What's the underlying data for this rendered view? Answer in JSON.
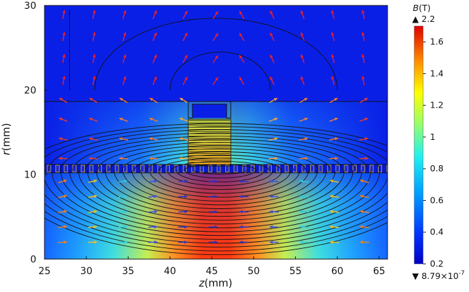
{
  "chart_data": {
    "type": "heatmap",
    "title": "",
    "xlabel": {
      "var": "z",
      "unit": "(mm)"
    },
    "ylabel": {
      "var": "r",
      "unit": "(mm)"
    },
    "xlim": [
      25,
      66
    ],
    "ylim": [
      0,
      30
    ],
    "xticks": [
      25,
      30,
      35,
      40,
      45,
      50,
      55,
      60,
      65
    ],
    "yticks": [
      0,
      10,
      20,
      30
    ],
    "regions": {
      "air_gap_r": [
        10,
        11
      ],
      "magnet": {
        "z": [
          43,
          48
        ],
        "r": [
          10.8,
          16.4
        ]
      },
      "upper_block_r": [
        11,
        20
      ],
      "inner_shell": {
        "z": [
          42.5,
          48.5
        ],
        "r": [
          16.5,
          20
        ]
      }
    },
    "field_summary": {
      "peak_B_core": 1.65,
      "peak_z": 46,
      "upper_region_B": 0.25
    },
    "colorbar": {
      "label_var": "B",
      "label_unit": "(T)",
      "max_marker": "▲ 2.2",
      "min_marker": "▼ 8.79×10",
      "min_marker_exp": "-7",
      "range": [
        0.2,
        1.7
      ],
      "ticks": [
        "0.2",
        "0.4",
        "0.6",
        "0.8",
        "1",
        "1.2",
        "1.4",
        "1.6"
      ],
      "ticks_values": [
        0.2,
        0.4,
        0.6,
        0.8,
        1.0,
        1.2,
        1.4,
        1.6
      ],
      "colormap": "jet"
    },
    "colors": {
      "arrow_upper": "#e8202a",
      "arrow_lower_core": "#2233cc",
      "contour": "#111111"
    }
  }
}
